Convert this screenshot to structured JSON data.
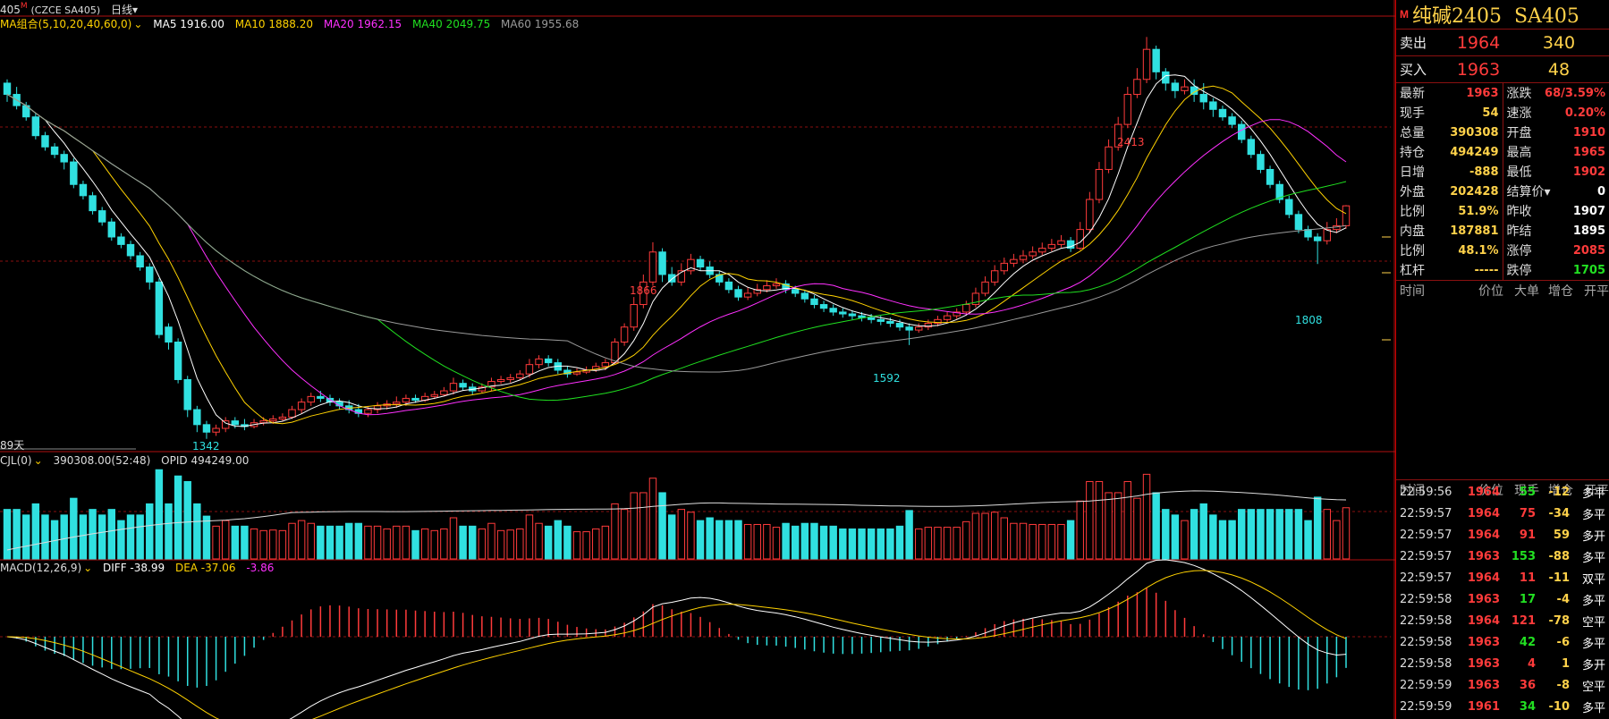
{
  "topbar": {
    "symbol": "405",
    "mark": "M",
    "code": "(CZCE SA405)",
    "period": "日线",
    "period_arrow": "▾"
  },
  "ma_legend": {
    "combo": "MA组合(5,10,20,40,60,0)",
    "items": [
      {
        "text": "MA5 1916.00",
        "color": "#ffffff"
      },
      {
        "text": "MA10 1888.20",
        "color": "#ffd200"
      },
      {
        "text": "MA20 1962.15",
        "color": "#ff30ff"
      },
      {
        "text": "MA40 2049.75",
        "color": "#20e020"
      },
      {
        "text": "MA60 1955.68",
        "color": "#9a9a9a"
      }
    ]
  },
  "volume_legend": {
    "title": "CJL(0)",
    "value": "390308.00(52:48)",
    "opid": "OPID 494249.00"
  },
  "macd_legend": {
    "title": "MACD(12,26,9)",
    "diff": "DIFF -38.99",
    "dea": "DEA -37.06",
    "macd": "-3.86"
  },
  "annotations": {
    "high_2413": "2413",
    "p1866": "1866",
    "low_1342": "1342",
    "p1592": "1592",
    "p1808": "1808",
    "days": "89天"
  },
  "chart_data": {
    "type": "candlestick",
    "symbol": "SA405",
    "annotated_prices": [
      2413,
      1866,
      1342,
      1592,
      1808
    ],
    "candles": [
      [
        2290,
        2260,
        2300,
        2240
      ],
      [
        2260,
        2230,
        2280,
        2220
      ],
      [
        2230,
        2200,
        2240,
        2190
      ],
      [
        2200,
        2150,
        2210,
        2140
      ],
      [
        2150,
        2120,
        2160,
        2110
      ],
      [
        2120,
        2100,
        2130,
        2090
      ],
      [
        2100,
        2080,
        2110,
        2060
      ],
      [
        2080,
        2020,
        2090,
        2010
      ],
      [
        2020,
        1990,
        2030,
        1980
      ],
      [
        1990,
        1950,
        2000,
        1940
      ],
      [
        1950,
        1920,
        1960,
        1910
      ],
      [
        1920,
        1880,
        1930,
        1870
      ],
      [
        1880,
        1860,
        1890,
        1850
      ],
      [
        1860,
        1830,
        1870,
        1820
      ],
      [
        1830,
        1800,
        1840,
        1790
      ],
      [
        1800,
        1760,
        1810,
        1740
      ],
      [
        1760,
        1620,
        1770,
        1610
      ],
      [
        1640,
        1600,
        1650,
        1580
      ],
      [
        1600,
        1500,
        1610,
        1490
      ],
      [
        1500,
        1420,
        1510,
        1400
      ],
      [
        1420,
        1380,
        1430,
        1360
      ],
      [
        1380,
        1360,
        1390,
        1342
      ],
      [
        1360,
        1370,
        1380,
        1350
      ],
      [
        1370,
        1390,
        1400,
        1360
      ],
      [
        1390,
        1380,
        1400,
        1370
      ],
      [
        1380,
        1375,
        1395,
        1365
      ],
      [
        1375,
        1385,
        1395,
        1370
      ],
      [
        1385,
        1390,
        1400,
        1378
      ],
      [
        1390,
        1395,
        1405,
        1382
      ],
      [
        1395,
        1400,
        1410,
        1388
      ],
      [
        1400,
        1420,
        1430,
        1395
      ],
      [
        1420,
        1440,
        1450,
        1410
      ],
      [
        1440,
        1455,
        1465,
        1430
      ],
      [
        1455,
        1450,
        1470,
        1440
      ],
      [
        1450,
        1440,
        1460,
        1430
      ],
      [
        1440,
        1430,
        1450,
        1420
      ],
      [
        1430,
        1420,
        1445,
        1410
      ],
      [
        1420,
        1410,
        1435,
        1400
      ],
      [
        1410,
        1420,
        1430,
        1400
      ],
      [
        1420,
        1430,
        1440,
        1410
      ],
      [
        1430,
        1435,
        1445,
        1420
      ],
      [
        1435,
        1440,
        1455,
        1425
      ],
      [
        1440,
        1450,
        1460,
        1430
      ],
      [
        1450,
        1445,
        1460,
        1438
      ],
      [
        1445,
        1455,
        1465,
        1440
      ],
      [
        1455,
        1460,
        1470,
        1448
      ],
      [
        1460,
        1470,
        1480,
        1455
      ],
      [
        1470,
        1490,
        1505,
        1460
      ],
      [
        1490,
        1480,
        1500,
        1470
      ],
      [
        1480,
        1470,
        1490,
        1460
      ],
      [
        1470,
        1480,
        1490,
        1465
      ],
      [
        1480,
        1495,
        1505,
        1470
      ],
      [
        1495,
        1500,
        1510,
        1488
      ],
      [
        1500,
        1505,
        1515,
        1492
      ],
      [
        1505,
        1515,
        1525,
        1500
      ],
      [
        1515,
        1540,
        1555,
        1505
      ],
      [
        1540,
        1555,
        1565,
        1530
      ],
      [
        1555,
        1545,
        1565,
        1535
      ],
      [
        1545,
        1525,
        1555,
        1515
      ],
      [
        1525,
        1515,
        1535,
        1505
      ],
      [
        1515,
        1520,
        1530,
        1510
      ],
      [
        1520,
        1525,
        1535,
        1515
      ],
      [
        1525,
        1535,
        1545,
        1520
      ],
      [
        1535,
        1545,
        1555,
        1525
      ],
      [
        1545,
        1600,
        1610,
        1540
      ],
      [
        1600,
        1640,
        1650,
        1590
      ],
      [
        1640,
        1700,
        1720,
        1630
      ],
      [
        1700,
        1760,
        1780,
        1690
      ],
      [
        1760,
        1840,
        1866,
        1750
      ],
      [
        1840,
        1780,
        1850,
        1760
      ],
      [
        1780,
        1760,
        1800,
        1750
      ],
      [
        1760,
        1790,
        1810,
        1750
      ],
      [
        1790,
        1820,
        1835,
        1780
      ],
      [
        1820,
        1800,
        1830,
        1790
      ],
      [
        1800,
        1780,
        1815,
        1770
      ],
      [
        1780,
        1760,
        1790,
        1750
      ],
      [
        1760,
        1740,
        1770,
        1730
      ],
      [
        1740,
        1720,
        1750,
        1710
      ],
      [
        1720,
        1730,
        1745,
        1712
      ],
      [
        1730,
        1740,
        1755,
        1722
      ],
      [
        1740,
        1750,
        1765,
        1732
      ],
      [
        1750,
        1755,
        1770,
        1742
      ],
      [
        1755,
        1740,
        1765,
        1730
      ],
      [
        1740,
        1730,
        1750,
        1720
      ],
      [
        1730,
        1715,
        1740,
        1705
      ],
      [
        1715,
        1700,
        1725,
        1690
      ],
      [
        1700,
        1690,
        1710,
        1680
      ],
      [
        1690,
        1680,
        1700,
        1670
      ],
      [
        1680,
        1675,
        1690,
        1665
      ],
      [
        1675,
        1670,
        1685,
        1660
      ],
      [
        1670,
        1665,
        1680,
        1655
      ],
      [
        1665,
        1660,
        1675,
        1650
      ],
      [
        1660,
        1655,
        1670,
        1645
      ],
      [
        1655,
        1650,
        1665,
        1640
      ],
      [
        1650,
        1640,
        1660,
        1630
      ],
      [
        1640,
        1632,
        1650,
        1592
      ],
      [
        1632,
        1640,
        1650,
        1625
      ],
      [
        1640,
        1650,
        1660,
        1632
      ],
      [
        1650,
        1660,
        1670,
        1642
      ],
      [
        1660,
        1670,
        1680,
        1652
      ],
      [
        1670,
        1680,
        1690,
        1662
      ],
      [
        1680,
        1700,
        1710,
        1672
      ],
      [
        1700,
        1730,
        1745,
        1692
      ],
      [
        1730,
        1760,
        1775,
        1722
      ],
      [
        1760,
        1790,
        1805,
        1750
      ],
      [
        1790,
        1810,
        1825,
        1780
      ],
      [
        1810,
        1820,
        1835,
        1800
      ],
      [
        1820,
        1830,
        1845,
        1810
      ],
      [
        1830,
        1840,
        1855,
        1822
      ],
      [
        1840,
        1850,
        1865,
        1832
      ],
      [
        1850,
        1860,
        1875,
        1842
      ],
      [
        1860,
        1870,
        1885,
        1852
      ],
      [
        1870,
        1850,
        1880,
        1840
      ],
      [
        1850,
        1900,
        1920,
        1845
      ],
      [
        1900,
        1980,
        2000,
        1890
      ],
      [
        1980,
        2060,
        2080,
        1970
      ],
      [
        2060,
        2120,
        2140,
        2050
      ],
      [
        2120,
        2180,
        2200,
        2110
      ],
      [
        2180,
        2260,
        2280,
        2170
      ],
      [
        2260,
        2300,
        2330,
        2250
      ],
      [
        2300,
        2380,
        2413,
        2290
      ],
      [
        2380,
        2320,
        2390,
        2300
      ],
      [
        2320,
        2290,
        2330,
        2270
      ],
      [
        2290,
        2270,
        2300,
        2250
      ],
      [
        2270,
        2280,
        2300,
        2260
      ],
      [
        2280,
        2260,
        2300,
        2240
      ],
      [
        2260,
        2240,
        2290,
        2220
      ],
      [
        2240,
        2220,
        2250,
        2200
      ],
      [
        2220,
        2200,
        2230,
        2190
      ],
      [
        2200,
        2180,
        2210,
        2170
      ],
      [
        2180,
        2140,
        2190,
        2130
      ],
      [
        2140,
        2100,
        2150,
        2090
      ],
      [
        2100,
        2060,
        2110,
        2050
      ],
      [
        2060,
        2020,
        2070,
        2010
      ],
      [
        2020,
        1980,
        2030,
        1970
      ],
      [
        1980,
        1940,
        1990,
        1930
      ],
      [
        1940,
        1900,
        1950,
        1890
      ],
      [
        1900,
        1880,
        1910,
        1870
      ],
      [
        1880,
        1870,
        1890,
        1808
      ],
      [
        1870,
        1900,
        1920,
        1860
      ],
      [
        1900,
        1910,
        1930,
        1890
      ],
      [
        1910,
        1963,
        1965,
        1902
      ]
    ]
  },
  "quote": {
    "title": "纯碱2405  SA405",
    "mark": "M",
    "sell_label": "卖出",
    "sell_price": "1964",
    "sell_vol": "340",
    "buy_label": "买入",
    "buy_price": "1963",
    "buy_vol": "48"
  },
  "stats_left": [
    {
      "k": "最新",
      "v": "1963",
      "c": "#ff3b3b"
    },
    {
      "k": "现手",
      "v": "54",
      "c": "#ffd24a"
    },
    {
      "k": "总量",
      "v": "390308",
      "c": "#ffd24a"
    },
    {
      "k": "持仓",
      "v": "494249",
      "c": "#ffd24a"
    },
    {
      "k": "日增",
      "v": "-888",
      "c": "#ffd24a"
    },
    {
      "k": "外盘",
      "v": "202428",
      "c": "#ffd24a"
    },
    {
      "k": "比例",
      "v": "51.9%",
      "c": "#ffd24a"
    },
    {
      "k": "内盘",
      "v": "187881",
      "c": "#ffd24a"
    },
    {
      "k": "比例",
      "v": "48.1%",
      "c": "#ffd24a"
    },
    {
      "k": "杠杆",
      "v": "-----",
      "c": "#ffd24a"
    }
  ],
  "stats_right": [
    {
      "k": "涨跌",
      "v": "68/3.59%",
      "c": "#ff3b3b"
    },
    {
      "k": "速涨",
      "v": "0.20%",
      "c": "#ff3b3b"
    },
    {
      "k": "开盘",
      "v": "1910",
      "c": "#ff3b3b"
    },
    {
      "k": "最高",
      "v": "1965",
      "c": "#ff3b3b"
    },
    {
      "k": "最低",
      "v": "1902",
      "c": "#ff3b3b"
    },
    {
      "k": "结算价▾",
      "v": "0",
      "c": "#ffffff"
    },
    {
      "k": "昨收",
      "v": "1907",
      "c": "#ffffff"
    },
    {
      "k": "昨结",
      "v": "1895",
      "c": "#ffffff"
    },
    {
      "k": "涨停",
      "v": "2085",
      "c": "#ff3b3b"
    },
    {
      "k": "跌停",
      "v": "1705",
      "c": "#22e022"
    }
  ],
  "big_header": [
    "时间",
    "价位",
    "大单",
    "增仓",
    "开平"
  ],
  "tick_header": [
    "时间",
    "价位",
    "现手",
    "增仓",
    "开平"
  ],
  "ticks": [
    {
      "time": "22:59:56",
      "price": "1964",
      "vol": "55",
      "chg": "-12",
      "type": "多平",
      "vc": "#22e022",
      "cc": "#ffd24a"
    },
    {
      "time": "22:59:57",
      "price": "1964",
      "vol": "75",
      "chg": "-34",
      "type": "多平",
      "vc": "#ff3b3b",
      "cc": "#ffd24a"
    },
    {
      "time": "22:59:57",
      "price": "1964",
      "vol": "91",
      "chg": "59",
      "type": "多开",
      "vc": "#ff3b3b",
      "cc": "#ffd24a"
    },
    {
      "time": "22:59:57",
      "price": "1963",
      "vol": "153",
      "chg": "-88",
      "type": "多平",
      "vc": "#22e022",
      "cc": "#ffd24a"
    },
    {
      "time": "22:59:57",
      "price": "1964",
      "vol": "11",
      "chg": "-11",
      "type": "双平",
      "vc": "#ff3b3b",
      "cc": "#ffd24a"
    },
    {
      "time": "22:59:58",
      "price": "1963",
      "vol": "17",
      "chg": "-4",
      "type": "多平",
      "vc": "#22e022",
      "cc": "#ffd24a"
    },
    {
      "time": "22:59:58",
      "price": "1964",
      "vol": "121",
      "chg": "-78",
      "type": "空平",
      "vc": "#ff3b3b",
      "cc": "#ffd24a"
    },
    {
      "time": "22:59:58",
      "price": "1963",
      "vol": "42",
      "chg": "-6",
      "type": "多平",
      "vc": "#22e022",
      "cc": "#ffd24a"
    },
    {
      "time": "22:59:58",
      "price": "1963",
      "vol": "4",
      "chg": "1",
      "type": "多开",
      "vc": "#ff3b3b",
      "cc": "#ffd24a"
    },
    {
      "time": "22:59:59",
      "price": "1963",
      "vol": "36",
      "chg": "-8",
      "type": "空平",
      "vc": "#ff3b3b",
      "cc": "#ffd24a"
    },
    {
      "time": "22:59:59",
      "price": "1961",
      "vol": "34",
      "chg": "-10",
      "type": "多平",
      "vc": "#22e022",
      "cc": "#ffd24a"
    }
  ]
}
